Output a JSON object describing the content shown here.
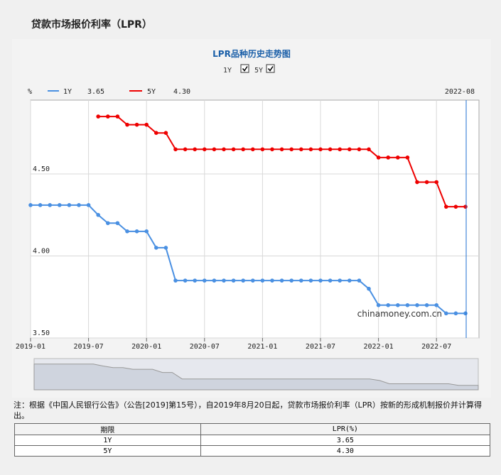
{
  "page": {
    "title": "贷款市场报价利率（LPR）"
  },
  "chart": {
    "title": "LPR品种历史走势图",
    "checkbox_1y": "1Y",
    "checkbox_5y": "5Y",
    "unit_label": "%",
    "latest_date": "2022-08",
    "watermark": "chinamoney.com.cn",
    "legend": [
      {
        "name": "1Y",
        "value": "3.65",
        "color": "#4a90e2"
      },
      {
        "name": "5Y",
        "value": "4.30",
        "color": "#ee0000"
      }
    ]
  },
  "chart_data": {
    "type": "line",
    "ylim": [
      3.5,
      4.95
    ],
    "yticks": [
      "3.50",
      "4.00",
      "4.50"
    ],
    "xticks": [
      "2019-01",
      "2019-07",
      "2020-01",
      "2020-07",
      "2021-01",
      "2021-07",
      "2022-01",
      "2022-07"
    ],
    "x": [
      "2019-01",
      "2019-02",
      "2019-03",
      "2019-04",
      "2019-05",
      "2019-06",
      "2019-07",
      "2019-08",
      "2019-09",
      "2019-10",
      "2019-11",
      "2019-12",
      "2020-01",
      "2020-02",
      "2020-03",
      "2020-04",
      "2020-05",
      "2020-06",
      "2020-07",
      "2020-08",
      "2020-09",
      "2020-10",
      "2020-11",
      "2020-12",
      "2021-01",
      "2021-02",
      "2021-03",
      "2021-04",
      "2021-05",
      "2021-06",
      "2021-07",
      "2021-08",
      "2021-09",
      "2021-10",
      "2021-11",
      "2021-12",
      "2022-01",
      "2022-02",
      "2022-03",
      "2022-04",
      "2022-05",
      "2022-06",
      "2022-07",
      "2022-08",
      "2022-09",
      "2022-10"
    ],
    "series": [
      {
        "name": "1Y",
        "color": "#4a90e2",
        "values": [
          4.31,
          4.31,
          4.31,
          4.31,
          4.31,
          4.31,
          4.31,
          4.25,
          4.2,
          4.2,
          4.15,
          4.15,
          4.15,
          4.05,
          4.05,
          3.85,
          3.85,
          3.85,
          3.85,
          3.85,
          3.85,
          3.85,
          3.85,
          3.85,
          3.85,
          3.85,
          3.85,
          3.85,
          3.85,
          3.85,
          3.85,
          3.85,
          3.85,
          3.85,
          3.85,
          3.8,
          3.7,
          3.7,
          3.7,
          3.7,
          3.7,
          3.7,
          3.7,
          3.65,
          3.65,
          3.65
        ]
      },
      {
        "name": "5Y",
        "color": "#ee0000",
        "values": [
          null,
          null,
          null,
          null,
          null,
          null,
          null,
          4.85,
          4.85,
          4.85,
          4.8,
          4.8,
          4.8,
          4.75,
          4.75,
          4.65,
          4.65,
          4.65,
          4.65,
          4.65,
          4.65,
          4.65,
          4.65,
          4.65,
          4.65,
          4.65,
          4.65,
          4.65,
          4.65,
          4.65,
          4.65,
          4.65,
          4.65,
          4.65,
          4.65,
          4.65,
          4.6,
          4.6,
          4.6,
          4.6,
          4.45,
          4.45,
          4.45,
          4.3,
          4.3,
          4.3
        ]
      }
    ]
  },
  "note": "注：根据《中国人民银行公告》（公告[2019]第15号），自2019年8月20日起，贷款市场报价利率（LPR）按新的形成机制报价并计算得出。",
  "table": {
    "headers": [
      "期限",
      "LPR(%)"
    ],
    "rows": [
      [
        "1Y",
        "3.65"
      ],
      [
        "5Y",
        "4.30"
      ]
    ]
  }
}
